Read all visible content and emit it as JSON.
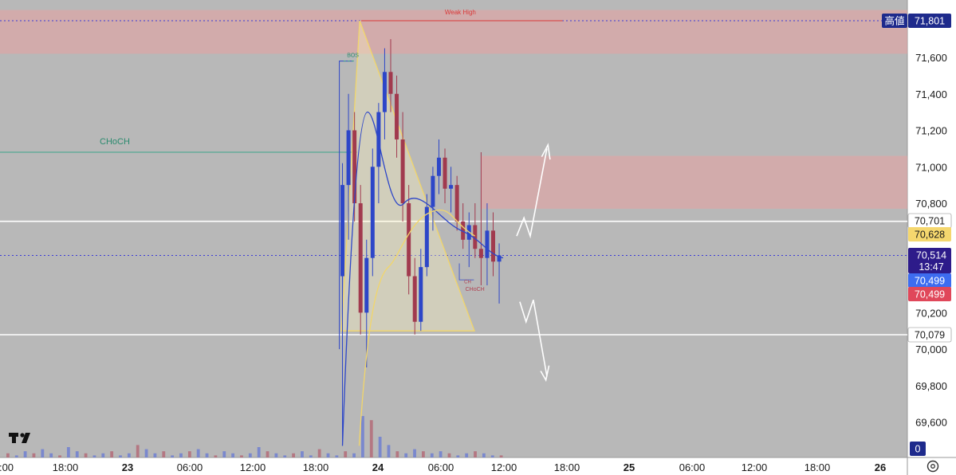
{
  "chart_data": {
    "type": "candlestick",
    "y_axis": {
      "range": [
        69450,
        71860
      ],
      "ticks": [
        "71,600",
        "71,400",
        "71,200",
        "71,000",
        "70,800",
        "70,200",
        "70,000",
        "69,800",
        "69,600"
      ]
    },
    "x_axis": {
      "labels": [
        ":00",
        "18:00",
        "23",
        "06:00",
        "12:00",
        "18:00",
        "24",
        "06:00",
        "12:00",
        "18:00",
        "25",
        "06:00",
        "12:00",
        "18:00",
        "26"
      ],
      "bold_labels": [
        "23",
        "24",
        "25",
        "26"
      ]
    },
    "price_tags": [
      {
        "label": "高値",
        "value": "71,801",
        "bg": "#1e2a8c",
        "fg": "#ffffff"
      },
      {
        "value": "70,701",
        "bg": "#ffffff",
        "fg": "#1a1a1a"
      },
      {
        "value": "70,628",
        "bg": "#f5d76e",
        "fg": "#1a1a1a"
      },
      {
        "value": "70,514",
        "countdown": "13:47",
        "bg": "#2d1b8a",
        "fg": "#ffffff"
      },
      {
        "value": "70,499",
        "bg": "#3d6cf0",
        "fg": "#ffffff"
      },
      {
        "value": "70,499",
        "bg": "#e0475a",
        "fg": "#ffffff"
      },
      {
        "value": "70,079",
        "bg": "#ffffff",
        "fg": "#1a1a1a"
      },
      {
        "value": "0",
        "bg": "#1e2a8c",
        "fg": "#ffffff"
      }
    ],
    "annotations": {
      "weak_high": "Weak High",
      "choch_left": "CHoCH",
      "bos": "BOS",
      "choch_right": "CHoCH",
      "choch_right_small": "CH"
    },
    "levels": {
      "high_line": 71801,
      "white_line_upper": 70701,
      "white_line_lower": 70079,
      "current_price_line": 70514,
      "choch_left_level": 71080
    },
    "zones": [
      {
        "name": "upper-supply-zone",
        "top": 71860,
        "bottom": 71620,
        "color": "#e8a0a0"
      },
      {
        "name": "mid-supply-zone",
        "top": 71060,
        "bottom": 70770,
        "color": "#e8a0a0"
      }
    ],
    "triangle_pattern": {
      "apex_time": 22.25,
      "apex_price": 71801,
      "base_left_time": 20.5,
      "base_right_time": 33.25,
      "base_price": 70100
    },
    "candles_ohlc": [
      [
        70400,
        71020,
        69470,
        70900
      ],
      [
        70900,
        71400,
        70600,
        71200
      ],
      [
        71200,
        71300,
        70700,
        70800
      ],
      [
        70800,
        70900,
        70080,
        70200
      ],
      [
        70200,
        70600,
        69900,
        70500
      ],
      [
        70500,
        71100,
        70400,
        71000
      ],
      [
        71000,
        71350,
        70800,
        71300
      ],
      [
        71300,
        71650,
        71150,
        71520
      ],
      [
        71520,
        71700,
        71300,
        71400
      ],
      [
        71400,
        71500,
        71050,
        71150
      ],
      [
        71150,
        71300,
        70700,
        70800
      ],
      [
        70800,
        70900,
        70300,
        70400
      ],
      [
        70400,
        70500,
        70080,
        70150
      ],
      [
        70150,
        70550,
        70100,
        70450
      ],
      [
        70450,
        70850,
        70400,
        70780
      ],
      [
        70780,
        71000,
        70650,
        70950
      ],
      [
        70950,
        71150,
        70850,
        71050
      ],
      [
        71050,
        71100,
        70800,
        70880
      ],
      [
        70880,
        71000,
        70750,
        70900
      ],
      [
        70900,
        70950,
        70650,
        70700
      ],
      [
        70700,
        70800,
        70550,
        70600
      ],
      [
        70600,
        70750,
        70450,
        70680
      ],
      [
        70680,
        70800,
        70500,
        70550
      ],
      [
        70550,
        71080,
        70350,
        70500
      ],
      [
        70500,
        70800,
        70350,
        70650
      ],
      [
        70650,
        70750,
        70400,
        70480
      ],
      [
        70480,
        70580,
        70250,
        70514
      ]
    ],
    "volume": [
      2,
      1,
      3,
      2,
      4,
      2,
      1,
      5,
      3,
      2,
      1,
      2,
      3,
      1,
      2,
      6,
      4,
      2,
      3,
      1,
      2,
      3,
      4,
      2,
      1,
      3,
      2,
      1,
      2,
      5,
      3,
      2,
      1,
      2,
      3,
      1,
      4,
      2,
      1,
      3,
      2,
      20,
      18,
      10,
      6,
      3,
      2,
      4,
      3,
      2,
      3,
      2,
      1,
      2,
      3,
      2,
      1,
      1
    ]
  },
  "ui": {
    "logo": "TV",
    "settings_icon": "settings-icon"
  }
}
